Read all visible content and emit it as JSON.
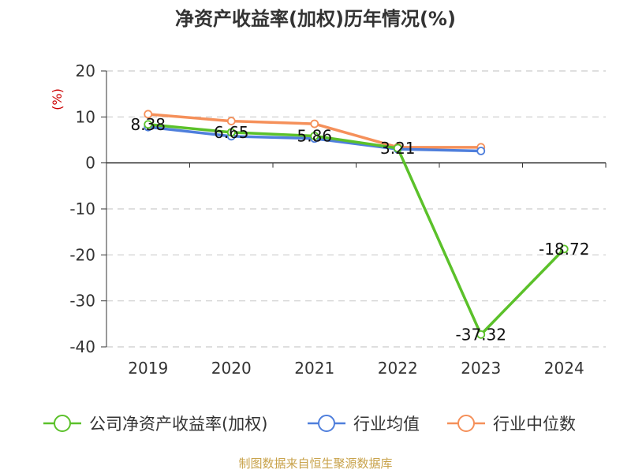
{
  "chart_data": {
    "type": "line",
    "title": "净资产收益率(加权)历年情况(%)",
    "ylabel": "(%)",
    "ylim": [
      -40,
      20
    ],
    "yticks": [
      20,
      10,
      0,
      -10,
      -20,
      -30,
      -40
    ],
    "categories": [
      "2019",
      "2020",
      "2021",
      "2022",
      "2023",
      "2024"
    ],
    "grid": true,
    "legend": "bottom",
    "series": [
      {
        "name": "公司净资产收益率(加权)",
        "color": "#5bc12a",
        "values": [
          8.38,
          6.65,
          5.86,
          3.21,
          -37.32,
          -18.72
        ],
        "labels": [
          "8.38",
          "6.65",
          "5.86",
          "3.21",
          "-37.32",
          "-18.72"
        ]
      },
      {
        "name": "行业均值",
        "color": "#4f7fdc",
        "values": [
          7.8,
          5.8,
          5.3,
          3.0,
          2.6,
          null
        ]
      },
      {
        "name": "行业中位数",
        "color": "#f5905a",
        "values": [
          10.6,
          9.1,
          8.5,
          3.4,
          3.4,
          null
        ]
      }
    ]
  },
  "source": "制图数据来自恒生聚源数据库"
}
